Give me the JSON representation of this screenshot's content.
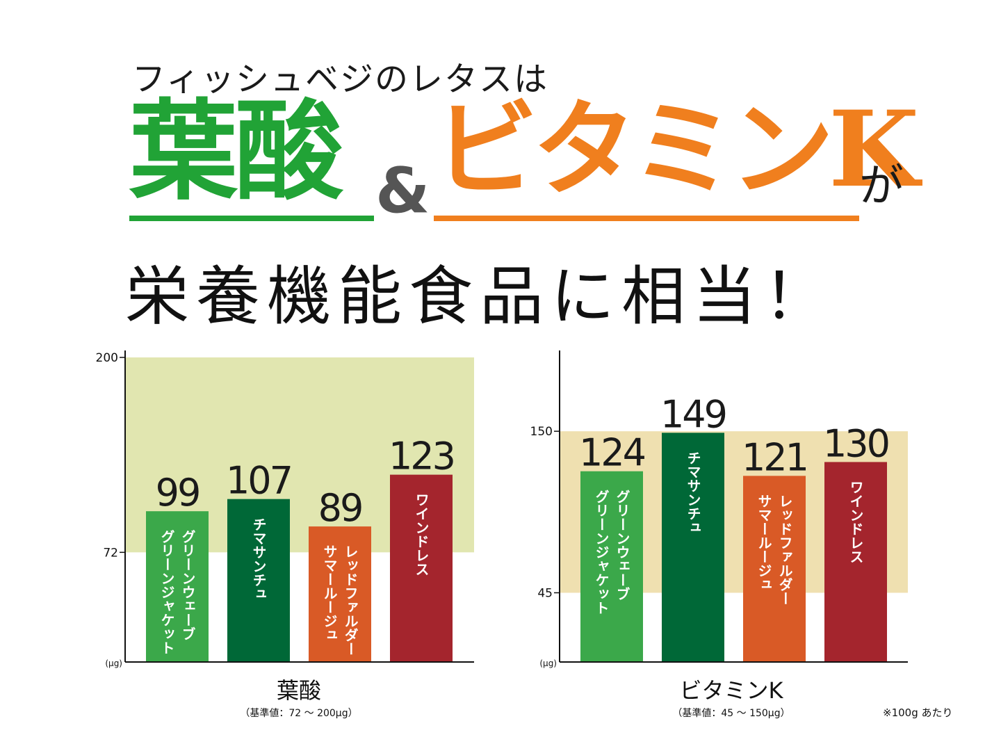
{
  "headline": {
    "line1": "フィッシュベジのレタスは",
    "word1": "葉酸",
    "amp": "&",
    "word2": "ビタミンK",
    "ga": "が",
    "line3": "栄養機能食品に相当！"
  },
  "footnote": "※100g あたり",
  "colors": {
    "green_title": "#21a336",
    "orange_title": "#f07f1e",
    "band_folic": "#e1e6b0",
    "band_vitk": "#efe0b0",
    "bar_green_light": "#3ba84a",
    "bar_green_dark": "#006837",
    "bar_orange": "#d95a26",
    "bar_red": "#a4252d"
  },
  "chart_data": [
    {
      "type": "bar",
      "title": "葉酸",
      "subtitle": "（基準値：72 ～ 200μg）",
      "unit": "(μg)",
      "categories": [
        "グリーンウェーブ\nグリーンジャケット",
        "チマサンチュ",
        "レッドファルダー\nサマールージュ",
        "ワインドレス"
      ],
      "values": [
        99,
        107,
        89,
        123
      ],
      "value_labels": [
        "99",
        "107",
        "89",
        "123"
      ],
      "bar_colors": [
        "#3ba84a",
        "#006837",
        "#d95a26",
        "#a4252d"
      ],
      "ylim": [
        0,
        200
      ],
      "yticks": [
        72,
        200
      ],
      "reference_band": [
        72,
        200
      ]
    },
    {
      "type": "bar",
      "title": "ビタミンK",
      "subtitle": "（基準値：45 ～ 150μg）",
      "unit": "(μg)",
      "categories": [
        "グリーンウェーブ\nグリーンジャケット",
        "チマサンチュ",
        "レッドファルダー\nサマールージュ",
        "ワインドレス"
      ],
      "values": [
        124,
        149,
        121,
        130
      ],
      "value_labels": [
        "124",
        "149",
        "121",
        "130"
      ],
      "bar_colors": [
        "#3ba84a",
        "#006837",
        "#d95a26",
        "#a4252d"
      ],
      "ylim": [
        0,
        198
      ],
      "yticks": [
        45,
        150
      ],
      "reference_band": [
        45,
        150
      ]
    }
  ]
}
